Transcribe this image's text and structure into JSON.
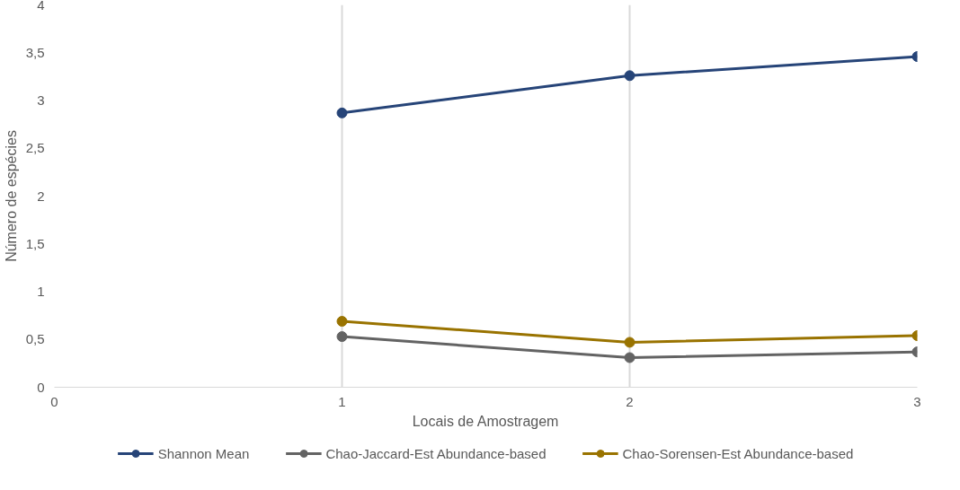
{
  "chart_data": {
    "type": "line",
    "xlabel": "Locais de Amostragem",
    "ylabel": "Número de espécies",
    "xlim": [
      0,
      3
    ],
    "xticks": [
      0,
      1,
      2,
      3
    ],
    "ylim": [
      0,
      4
    ],
    "yticks": [
      0,
      {
        "value": 0.5,
        "label": "0,5"
      },
      1,
      {
        "value": 1.5,
        "label": "1,5"
      },
      2,
      {
        "value": 2.5,
        "label": "2,5"
      },
      3,
      {
        "value": 3.5,
        "label": "3,5"
      },
      4
    ],
    "grid": "x",
    "legend": "bottom",
    "marker": "circle",
    "line_style": "solid",
    "series": [
      {
        "name": "Shannon Mean",
        "color": "#264478",
        "x": [
          1,
          2,
          3
        ],
        "values": [
          2.87,
          3.26,
          3.46
        ]
      },
      {
        "name": "Chao-Jaccard-Est Abundance-based",
        "color": "#636363",
        "x": [
          1,
          2,
          3
        ],
        "values": [
          0.53,
          0.31,
          0.37
        ]
      },
      {
        "name": "Chao-Sorensen-Est Abundance-based",
        "color": "#997300",
        "x": [
          1,
          2,
          3
        ],
        "values": [
          0.69,
          0.47,
          0.54
        ]
      }
    ]
  }
}
